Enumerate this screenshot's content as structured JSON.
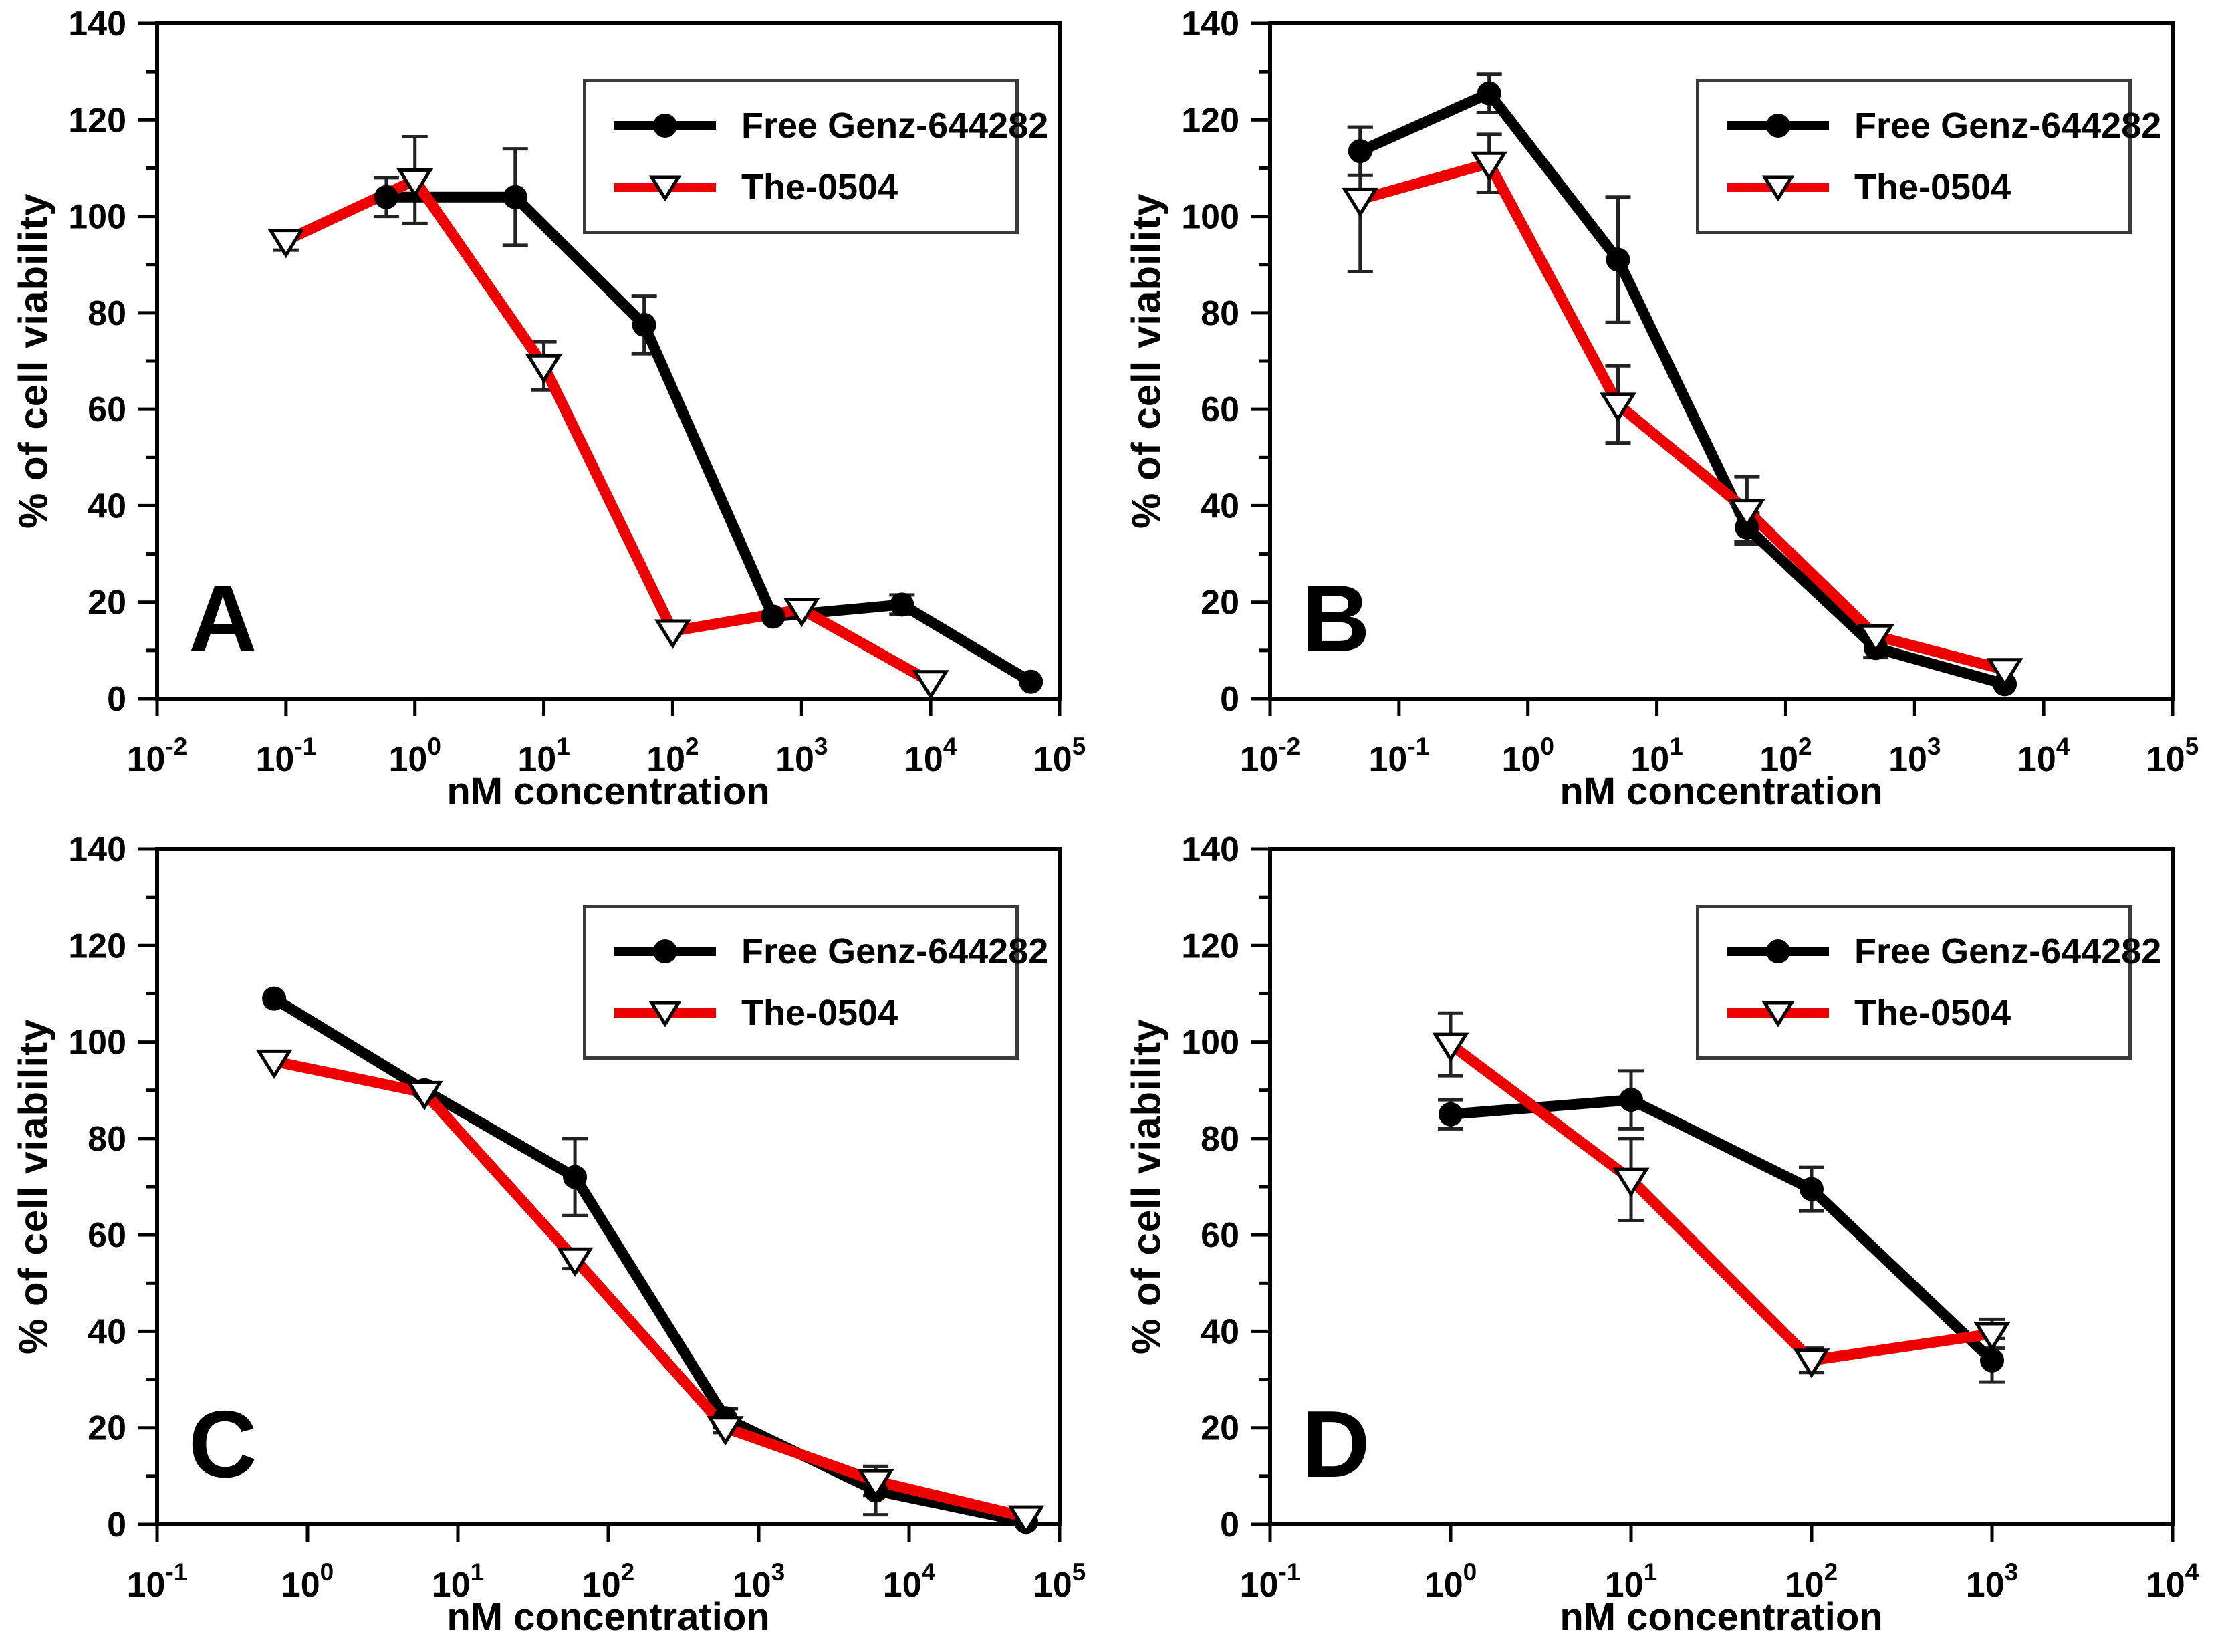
{
  "page": {
    "background": "#ffffff"
  },
  "shared": {
    "xlabel": "nM concentration",
    "ylabel": "% of cell viability",
    "axis_color": "#000000",
    "error_bar_color": "#222222",
    "legend_position": "top-right",
    "legend": [
      {
        "name": "Free Genz-644282",
        "color": "#000000",
        "marker": "filled-circle"
      },
      {
        "name": "The-0504",
        "color": "#ee0000",
        "marker": "open-triangle-down"
      }
    ]
  },
  "chart_data": [
    {
      "panel": "A",
      "type": "line",
      "xlabel": "nM concentration",
      "ylabel": "% of cell viability",
      "x_axis": {
        "scale": "log",
        "exp_min": -2,
        "exp_max": 5,
        "tick_labels": [
          "10⁻²",
          "10⁻¹",
          "10⁰",
          "10¹",
          "10²",
          "10³",
          "10⁴",
          "10⁵"
        ]
      },
      "y_axis": {
        "min": 0,
        "max": 140,
        "major_step": 20,
        "minor_step": 10
      },
      "grid": false,
      "series": [
        {
          "name": "Free Genz-644282",
          "color": "#000000",
          "marker": "circle",
          "x": [
            0.6,
            6,
            60,
            600,
            6000,
            60000
          ],
          "y": [
            104,
            104,
            77.5,
            17,
            19.5,
            3.5
          ],
          "yerr": [
            4,
            10,
            6,
            0,
            2,
            0
          ]
        },
        {
          "name": "The-0504",
          "color": "#ee0000",
          "marker": "triangle-down",
          "x": [
            0.1,
            1,
            10,
            100,
            1000,
            10000
          ],
          "y": [
            95,
            107.5,
            69,
            14,
            18.5,
            3.5
          ],
          "yerr": [
            2,
            9,
            5,
            0,
            0,
            0
          ]
        }
      ]
    },
    {
      "panel": "B",
      "type": "line",
      "xlabel": "nM concentration",
      "ylabel": "% of cell viability",
      "x_axis": {
        "scale": "log",
        "exp_min": -2,
        "exp_max": 5,
        "tick_labels": [
          "10⁻²",
          "10⁻¹",
          "10⁰",
          "10¹",
          "10²",
          "10³",
          "10⁴",
          "10⁵"
        ]
      },
      "y_axis": {
        "min": 0,
        "max": 140,
        "major_step": 20,
        "minor_step": 10
      },
      "grid": false,
      "series": [
        {
          "name": "Free Genz-644282",
          "color": "#000000",
          "marker": "circle",
          "x": [
            0.05,
            0.5,
            5,
            50,
            500,
            5000
          ],
          "y": [
            113.5,
            125.5,
            91,
            35.5,
            10.5,
            3
          ],
          "yerr": [
            5,
            4,
            13,
            3,
            2,
            0
          ]
        },
        {
          "name": "The-0504",
          "color": "#ee0000",
          "marker": "triangle-down",
          "x": [
            0.05,
            0.5,
            5,
            50,
            500,
            5000
          ],
          "y": [
            103.5,
            111,
            61,
            39,
            13,
            6
          ],
          "yerr": [
            15,
            6,
            8,
            7,
            0,
            0
          ]
        }
      ]
    },
    {
      "panel": "C",
      "type": "line",
      "xlabel": "nM concentration",
      "ylabel": "% of cell viability",
      "x_axis": {
        "scale": "log",
        "exp_min": -1,
        "exp_max": 5,
        "tick_labels": [
          "10⁻¹",
          "10⁰",
          "10¹",
          "10²",
          "10³",
          "10⁴",
          "10⁵"
        ]
      },
      "y_axis": {
        "min": 0,
        "max": 140,
        "major_step": 20,
        "minor_step": 10
      },
      "grid": false,
      "series": [
        {
          "name": "Free Genz-644282",
          "color": "#000000",
          "marker": "circle",
          "x": [
            0.6,
            6,
            60,
            600,
            6000,
            60000
          ],
          "y": [
            109,
            90,
            72,
            22,
            7,
            0.5
          ],
          "yerr": [
            0,
            0,
            8,
            2,
            5,
            0
          ]
        },
        {
          "name": "The-0504",
          "color": "#ee0000",
          "marker": "triangle-down",
          "x": [
            0.6,
            6,
            60,
            600,
            6000,
            60000
          ],
          "y": [
            96,
            89.5,
            55,
            20,
            9,
            1.5
          ],
          "yerr": [
            0,
            0,
            2,
            1,
            3,
            0
          ]
        }
      ]
    },
    {
      "panel": "D",
      "type": "line",
      "xlabel": "nM concentration",
      "ylabel": "% of cell viability",
      "x_axis": {
        "scale": "log",
        "exp_min": -1,
        "exp_max": 4,
        "tick_labels": [
          "10⁻¹",
          "10⁰",
          "10¹",
          "10²",
          "10³",
          "10⁴"
        ]
      },
      "y_axis": {
        "min": 0,
        "max": 140,
        "major_step": 20,
        "minor_step": 10
      },
      "grid": false,
      "series": [
        {
          "name": "Free Genz-644282",
          "color": "#000000",
          "marker": "circle",
          "x": [
            1,
            10,
            100,
            1000
          ],
          "y": [
            85,
            88,
            69.5,
            34
          ],
          "yerr": [
            3,
            6,
            4.5,
            4.5
          ]
        },
        {
          "name": "The-0504",
          "color": "#ee0000",
          "marker": "triangle-down",
          "x": [
            1,
            10,
            100,
            1000
          ],
          "y": [
            99.5,
            71.5,
            34,
            39.5
          ],
          "yerr": [
            6.5,
            8.5,
            2.5,
            3
          ]
        }
      ]
    }
  ]
}
